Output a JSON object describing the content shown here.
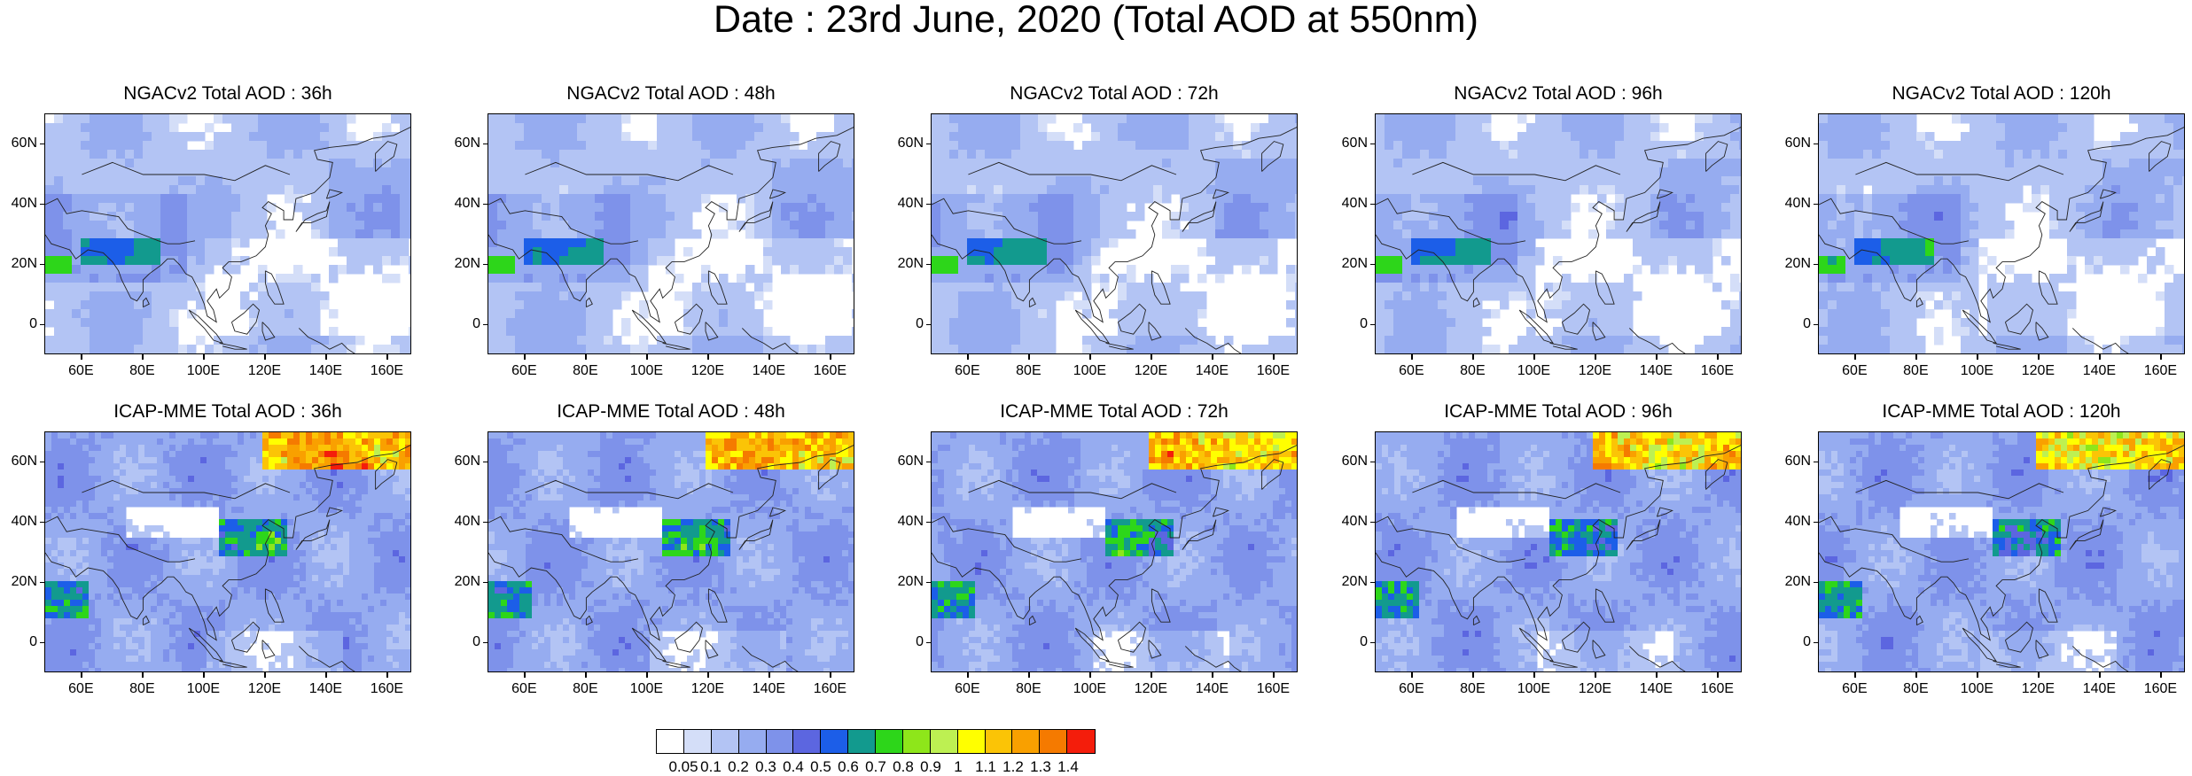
{
  "title": "Date : 23rd June, 2020 (Total AOD at 550nm)",
  "rows": [
    {
      "model": "NGACv2",
      "panels": [
        {
          "title": "NGACv2 Total AOD : 36h",
          "lead": "36h"
        },
        {
          "title": "NGACv2 Total AOD : 48h",
          "lead": "48h"
        },
        {
          "title": "NGACv2 Total AOD : 72h",
          "lead": "72h"
        },
        {
          "title": "NGACv2 Total AOD : 96h",
          "lead": "96h"
        },
        {
          "title": "NGACv2 Total AOD : 120h",
          "lead": "120h"
        }
      ]
    },
    {
      "model": "ICAP-MME",
      "panels": [
        {
          "title": "ICAP-MME Total AOD : 36h",
          "lead": "36h"
        },
        {
          "title": "ICAP-MME Total AOD : 48h",
          "lead": "48h"
        },
        {
          "title": "ICAP-MME Total AOD : 72h",
          "lead": "72h"
        },
        {
          "title": "ICAP-MME Total AOD : 96h",
          "lead": "96h"
        },
        {
          "title": "ICAP-MME Total AOD : 120h",
          "lead": "120h"
        }
      ]
    }
  ],
  "map": {
    "lon_range": [
      48,
      168
    ],
    "lat_range": [
      -10,
      70
    ],
    "lon_ticks": [
      60,
      80,
      100,
      120,
      140,
      160
    ],
    "lon_tick_labels": [
      "60E",
      "80E",
      "100E",
      "120E",
      "140E",
      "160E"
    ],
    "lat_ticks": [
      0,
      20,
      40,
      60
    ],
    "lat_tick_labels": [
      "0",
      "20N",
      "40N",
      "60N"
    ]
  },
  "colorbar": {
    "colors": [
      "#ffffff",
      "#d4def8",
      "#b3c4f4",
      "#96acf0",
      "#7e92ea",
      "#5c66e0",
      "#1c5ee8",
      "#129a8e",
      "#2dd61a",
      "#8ee61a",
      "#bdf052",
      "#ffff00",
      "#fbc406",
      "#f9a000",
      "#f57a00",
      "#f41d0b"
    ],
    "labels": [
      "0.05",
      "0.1",
      "0.2",
      "0.3",
      "0.4",
      "0.5",
      "0.6",
      "0.7",
      "0.8",
      "0.9",
      "1",
      "1.1",
      "1.2",
      "1.3",
      "1.4"
    ]
  }
}
